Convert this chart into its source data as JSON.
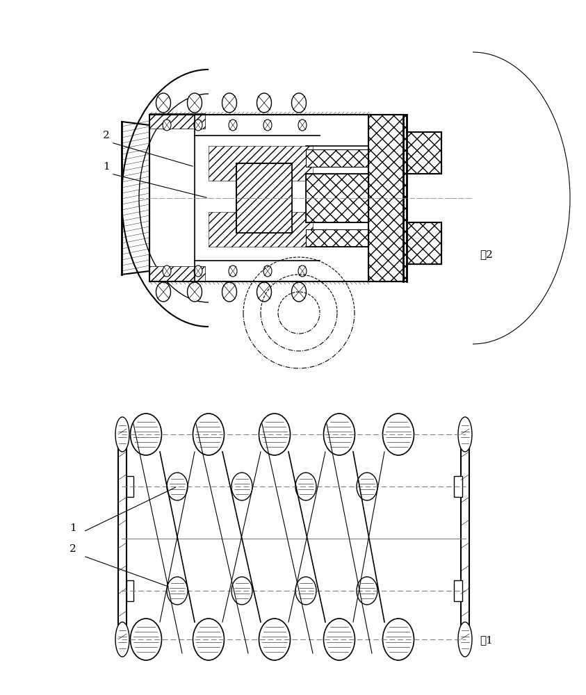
{
  "fig_label1": "图1",
  "fig_label2": "图2",
  "label1": "1",
  "label2": "2",
  "bg_color": "#ffffff",
  "line_color": "#000000",
  "hatch_color": "#000000",
  "dash_color": "#555555"
}
